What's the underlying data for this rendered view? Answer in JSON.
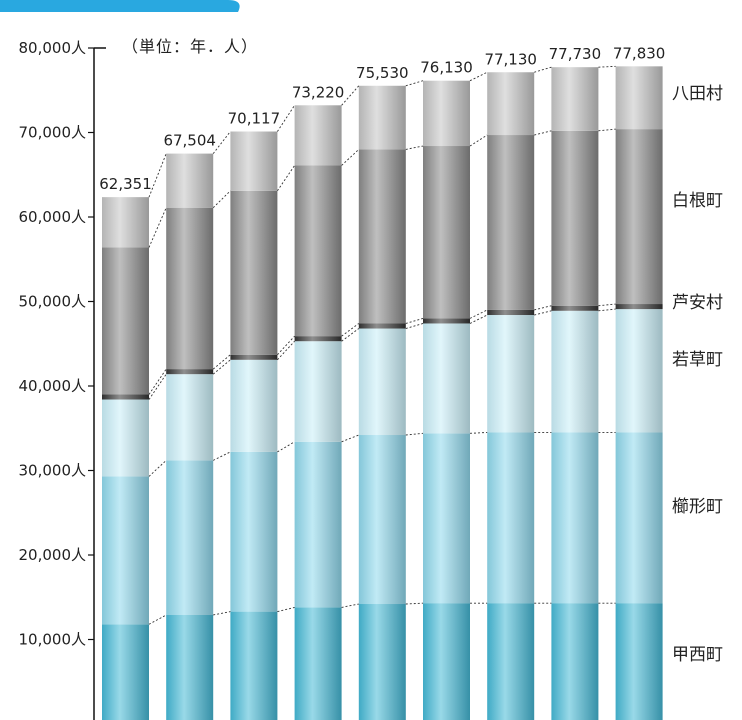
{
  "chart_data": {
    "type": "bar",
    "stacked": true,
    "unit_note": "（単位：年．人）",
    "y_tick_labels": [
      "10,000人",
      "20,000人",
      "30,000人",
      "40,000人",
      "50,000人",
      "60,000人",
      "70,000人",
      "80,000人"
    ],
    "y_ticks": [
      10000,
      20000,
      30000,
      40000,
      50000,
      60000,
      70000,
      80000
    ],
    "ylim": [
      0,
      80000
    ],
    "categories": [
      "",
      "",
      "",
      "",
      "",
      "",
      "",
      "",
      ""
    ],
    "totals_labels": [
      "62,351",
      "67,504",
      "70,117",
      "73,220",
      "75,530",
      "76,130",
      "77,130",
      "77,730",
      "77,830"
    ],
    "series": [
      {
        "name": "甲西町",
        "values": [
          11800,
          12900,
          13300,
          13800,
          14200,
          14300,
          14300,
          14300,
          14300
        ],
        "color": "#45b9d6"
      },
      {
        "name": "櫛形町",
        "values": [
          17500,
          18300,
          18900,
          19600,
          20000,
          20100,
          20200,
          20200,
          20200
        ],
        "color": "#8fd8ec"
      },
      {
        "name": "若草町",
        "values": [
          9100,
          10200,
          10900,
          11900,
          12600,
          13000,
          13900,
          14400,
          14600
        ],
        "color": "#c9eef8"
      },
      {
        "name": "芦安村",
        "values": [
          600,
          600,
          600,
          600,
          600,
          600,
          600,
          600,
          600
        ],
        "color": "#333333"
      },
      {
        "name": "白根町",
        "values": [
          17400,
          19100,
          19400,
          20200,
          20600,
          20400,
          20700,
          20700,
          20700
        ],
        "color": "#8a8a8a"
      },
      {
        "name": "八田村",
        "values": [
          5951,
          6404,
          7017,
          7120,
          7530,
          7730,
          7430,
          7530,
          7430
        ],
        "color": "#c4c4c4"
      }
    ],
    "grid": false,
    "legend": "right"
  }
}
